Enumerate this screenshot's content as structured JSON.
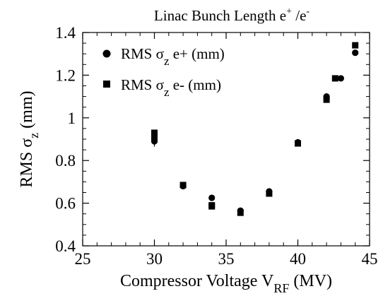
{
  "chart_data": {
    "type": "scatter",
    "title": {
      "main": "Linac Bunch Length e",
      "sup1": "+",
      "mid": " /e",
      "sup2": "-"
    },
    "xlabel": {
      "main": "Compressor Voltage V",
      "sub": "RF",
      "tail": " (MV)"
    },
    "ylabel": {
      "main": "RMS  σ",
      "sub": "z",
      "tail": "   (mm)"
    },
    "xlim": [
      25,
      45
    ],
    "ylim": [
      0.4,
      1.4
    ],
    "x_ticks": [
      25,
      30,
      35,
      40,
      45
    ],
    "x_tick_labels": [
      "25",
      "30",
      "35",
      "40",
      "45"
    ],
    "y_ticks": [
      0.4,
      0.6,
      0.8,
      1.0,
      1.2,
      1.4
    ],
    "y_tick_labels": [
      "0.4",
      "0.6",
      "0.8",
      "1",
      "1.2",
      "1.4"
    ],
    "grid": false,
    "legend_position": "top-left",
    "series": [
      {
        "name": "RMS σz e+ (mm)",
        "label_main": "RMS  σ",
        "label_sub": "z",
        "label_tail": "  e+ (mm)",
        "marker": "circle",
        "points": [
          {
            "x": 30,
            "y": 0.89,
            "err": 0.025
          },
          {
            "x": 30,
            "y": 0.9
          },
          {
            "x": 32,
            "y": 0.68
          },
          {
            "x": 34,
            "y": 0.625
          },
          {
            "x": 36,
            "y": 0.565
          },
          {
            "x": 38,
            "y": 0.655
          },
          {
            "x": 40,
            "y": 0.885
          },
          {
            "x": 42,
            "y": 1.1
          },
          {
            "x": 42,
            "y": 1.09
          },
          {
            "x": 43,
            "y": 1.185
          },
          {
            "x": 44,
            "y": 1.305
          }
        ]
      },
      {
        "name": "RMS σz e- (mm)",
        "label_main": "RMS  σ",
        "label_sub": "z",
        "label_tail": "  e- (mm)",
        "marker": "square",
        "points": [
          {
            "x": 30,
            "y": 0.93
          },
          {
            "x": 30,
            "y": 0.91
          },
          {
            "x": 32,
            "y": 0.685
          },
          {
            "x": 34,
            "y": 0.59
          },
          {
            "x": 34,
            "y": 0.585
          },
          {
            "x": 36,
            "y": 0.555
          },
          {
            "x": 38,
            "y": 0.645
          },
          {
            "x": 40,
            "y": 0.88
          },
          {
            "x": 42,
            "y": 1.085
          },
          {
            "x": 42.6,
            "y": 1.185
          },
          {
            "x": 44,
            "y": 1.34
          }
        ]
      }
    ]
  }
}
